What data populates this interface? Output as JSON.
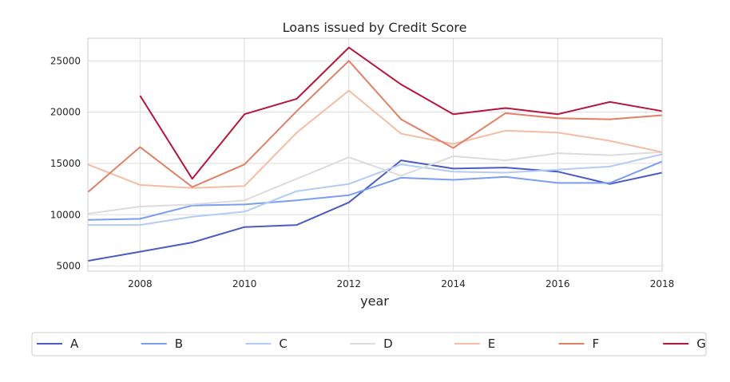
{
  "chart_data": {
    "type": "line",
    "title": "Loans issued by Credit Score",
    "xlabel": "year",
    "ylabel": "",
    "xlim": [
      2007,
      2018
    ],
    "ylim": [
      4500,
      27200
    ],
    "xticks": [
      2008,
      2010,
      2012,
      2014,
      2016,
      2018
    ],
    "yticks": [
      5000,
      10000,
      15000,
      20000,
      25000
    ],
    "grid": true,
    "legend_position": "bottom",
    "x": [
      2007,
      2008,
      2009,
      2010,
      2011,
      2012,
      2013,
      2014,
      2015,
      2016,
      2017,
      2018
    ],
    "series": [
      {
        "name": "A",
        "color": "#4a5cc4",
        "values": [
          5500,
          6400,
          7300,
          8800,
          9000,
          11200,
          15300,
          14500,
          14600,
          14200,
          13000,
          14100
        ]
      },
      {
        "name": "B",
        "color": "#7a9ef0",
        "values": [
          9500,
          9600,
          10900,
          11000,
          11400,
          11900,
          13600,
          13400,
          13700,
          13100,
          13100,
          15200
        ]
      },
      {
        "name": "C",
        "color": "#b2cbf8",
        "values": [
          9000,
          9000,
          9800,
          10300,
          12300,
          13000,
          14900,
          14200,
          14100,
          14400,
          14700,
          15900
        ]
      },
      {
        "name": "D",
        "color": "#dcdcdc",
        "values": [
          10100,
          10800,
          11000,
          11400,
          13500,
          15600,
          13800,
          15700,
          15300,
          16000,
          15800,
          16100
        ]
      },
      {
        "name": "E",
        "color": "#f5bca3",
        "values": [
          14900,
          12900,
          12600,
          12800,
          18000,
          22100,
          17900,
          16900,
          18200,
          18000,
          17200,
          16100
        ]
      },
      {
        "name": "F",
        "color": "#e37f66",
        "values": [
          12200,
          16600,
          12700,
          14900,
          20100,
          25000,
          19300,
          16500,
          19900,
          19400,
          19300,
          19700
        ]
      },
      {
        "name": "G",
        "color": "#b6163a",
        "values": [
          null,
          21600,
          13500,
          19800,
          21300,
          26300,
          22700,
          19800,
          20400,
          19800,
          21000,
          20100
        ]
      }
    ]
  }
}
